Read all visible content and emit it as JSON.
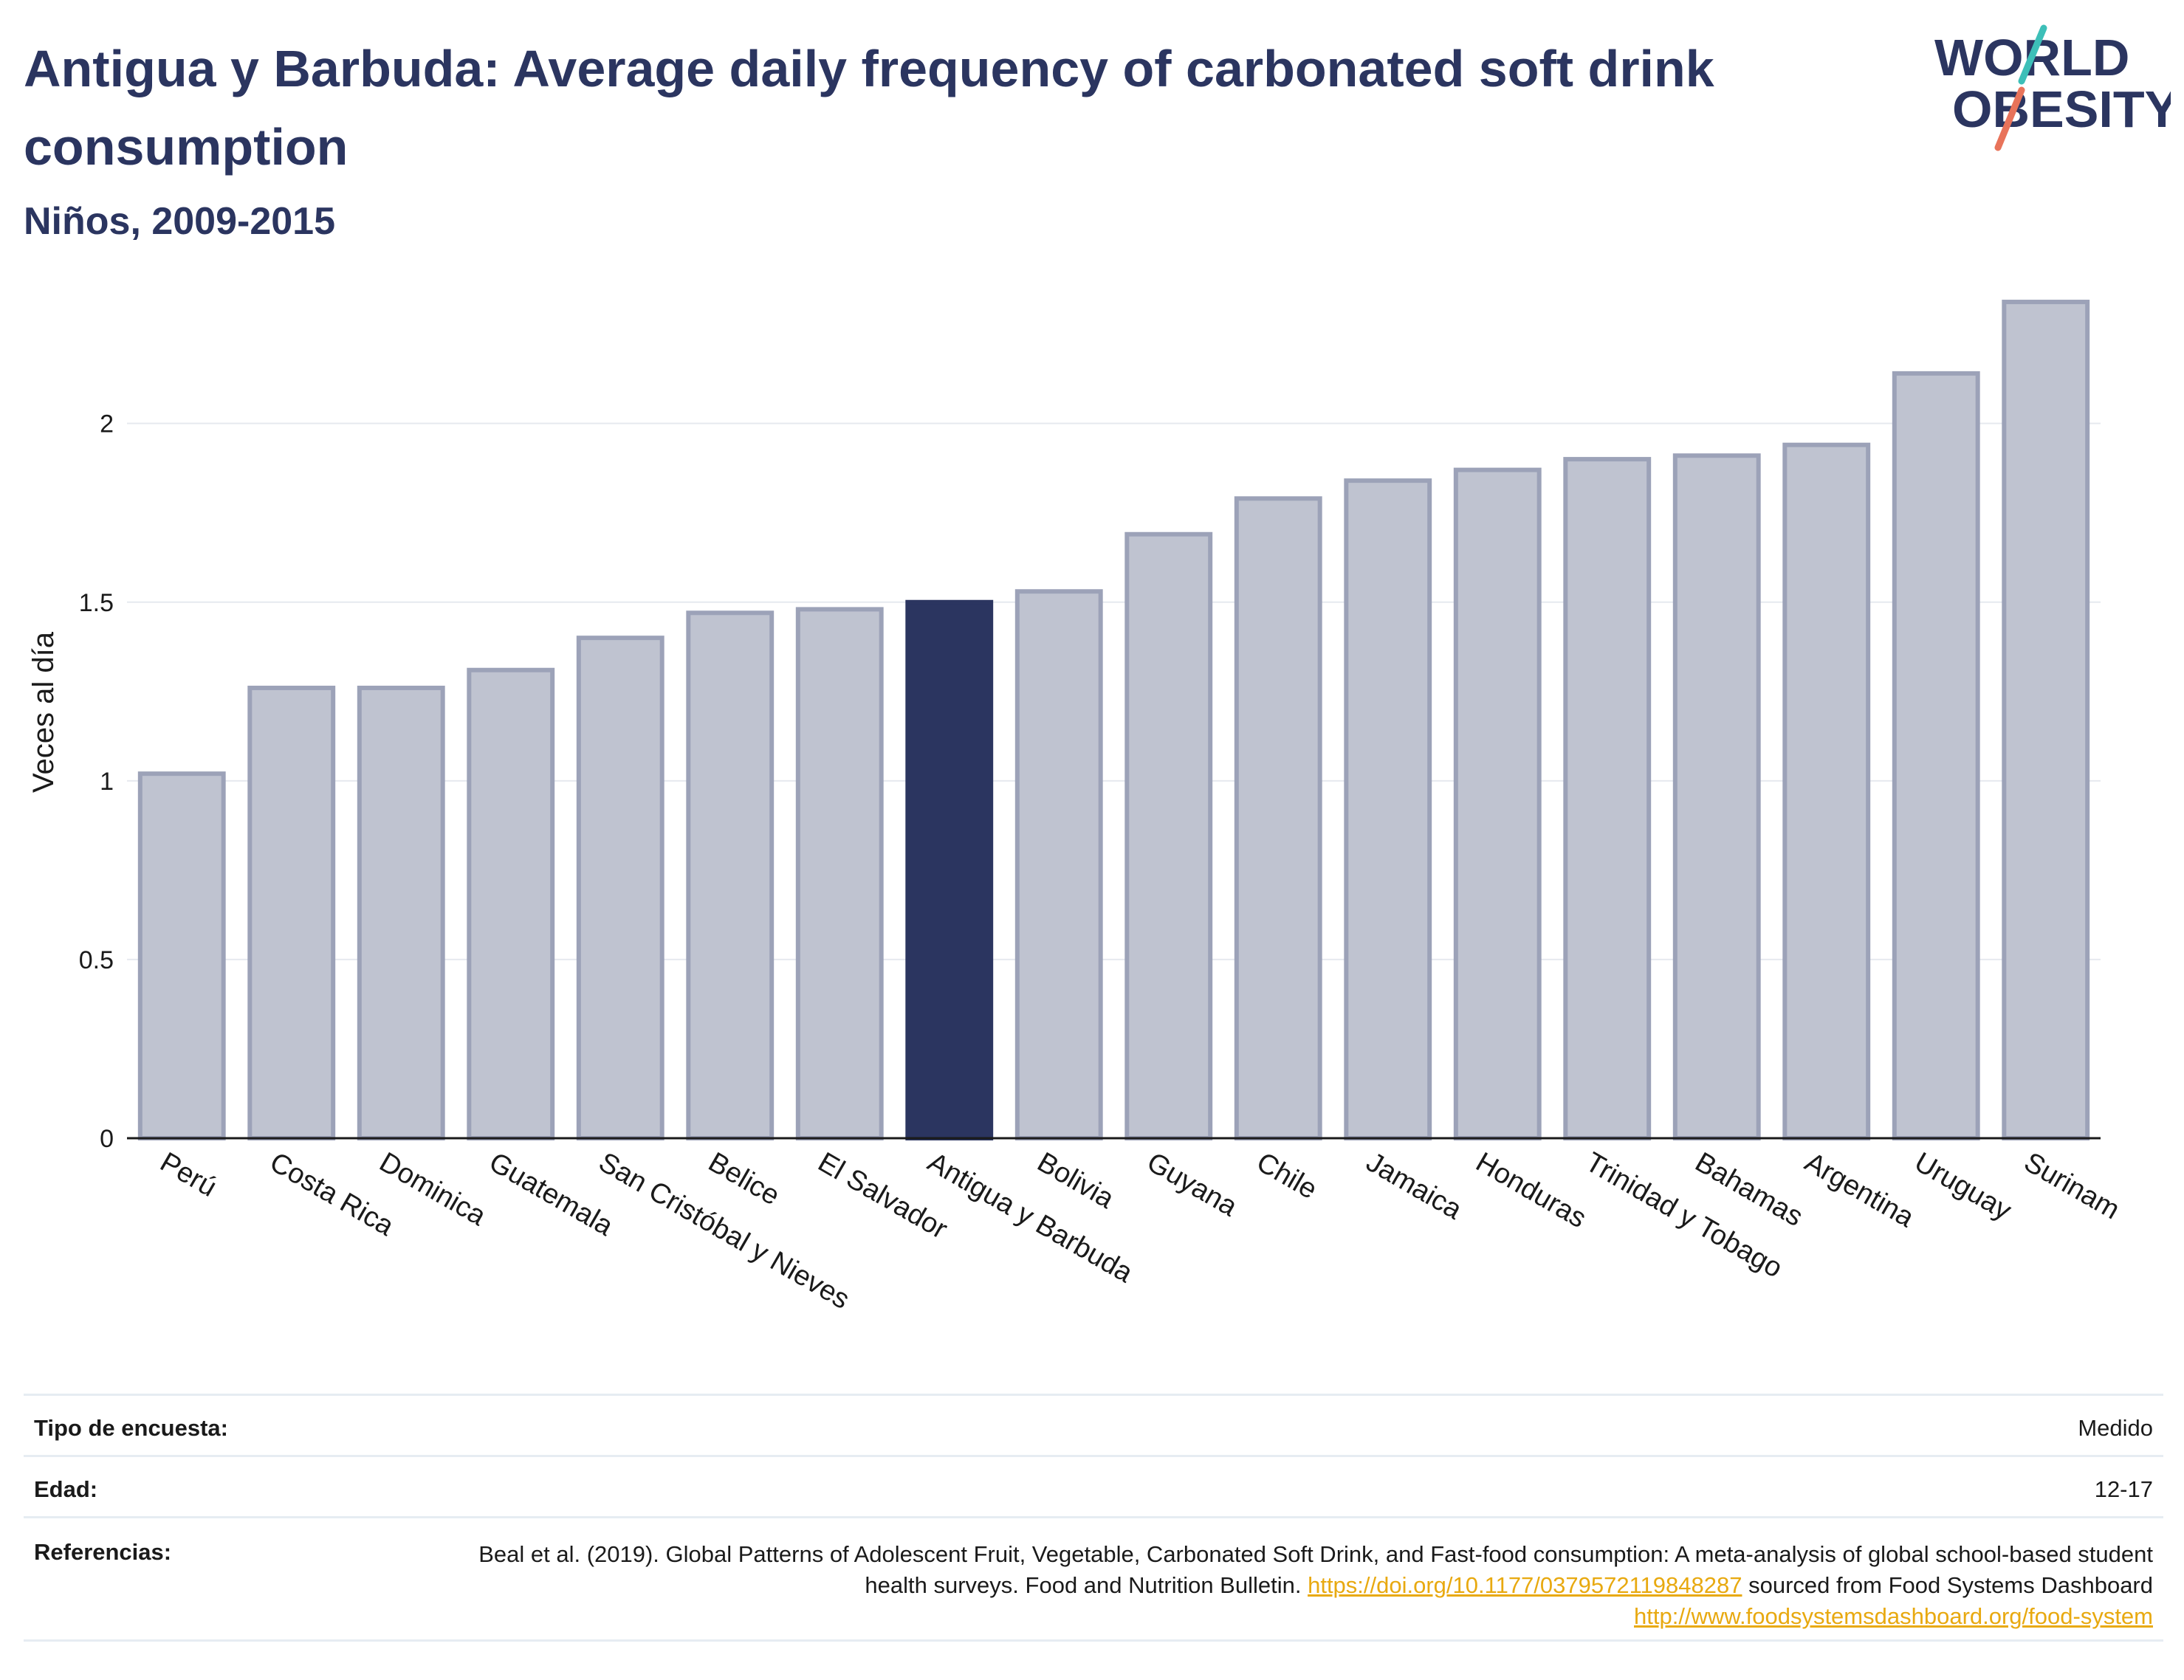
{
  "header": {
    "title": "Antigua y Barbuda: Average daily frequency of carbonated soft drink consumption",
    "subtitle": "Niños, 2009-2015"
  },
  "logo": {
    "line1": "WORLD",
    "line2": "OBESITY",
    "accent_teal": "#3dbfb8",
    "accent_red": "#e8735a"
  },
  "chart_data": {
    "type": "bar",
    "ylabel": "Veces al día",
    "ylim": [
      0,
      2.4
    ],
    "yticks": [
      0,
      0.5,
      1,
      1.5,
      2
    ],
    "ytick_labels": [
      "0",
      "0.5",
      "1",
      "1.5",
      "2"
    ],
    "grid": true,
    "categories": [
      "Perú",
      "Costa Rica",
      "Dominica",
      "Guatemala",
      "San Cristóbal y Nieves",
      "Belice",
      "El Salvador",
      "Antigua y Barbuda",
      "Bolivia",
      "Guyana",
      "Chile",
      "Jamaica",
      "Honduras",
      "Trinidad y Tobago",
      "Bahamas",
      "Argentina",
      "Uruguay",
      "Surinam"
    ],
    "values": [
      1.02,
      1.26,
      1.26,
      1.31,
      1.4,
      1.47,
      1.48,
      1.5,
      1.53,
      1.69,
      1.79,
      1.84,
      1.87,
      1.9,
      1.91,
      1.94,
      2.14,
      2.34
    ],
    "highlight": "Antigua y Barbuda",
    "colors": {
      "bar": "#bfc3d0",
      "bar_outline": "#9ca2b8",
      "highlight": "#2b3560"
    }
  },
  "meta": {
    "survey_type": {
      "label": "Tipo de encuesta:",
      "value": "Medido"
    },
    "age": {
      "label": "Edad:",
      "value": "12-17"
    },
    "references": {
      "label": "Referencias:",
      "text1": "Beal et al. (2019). Global Patterns of Adolescent Fruit, Vegetable, Carbonated Soft Drink, and Fast-food consumption: A meta-analysis of global school-based student health surveys. Food and Nutrition Bulletin.",
      "link1": "https://doi.org/10.1177/0379572119848287",
      "text2": "sourced from Food Systems Dashboard",
      "link2": "http://www.foodsystemsdashboard.org/food-system"
    }
  }
}
